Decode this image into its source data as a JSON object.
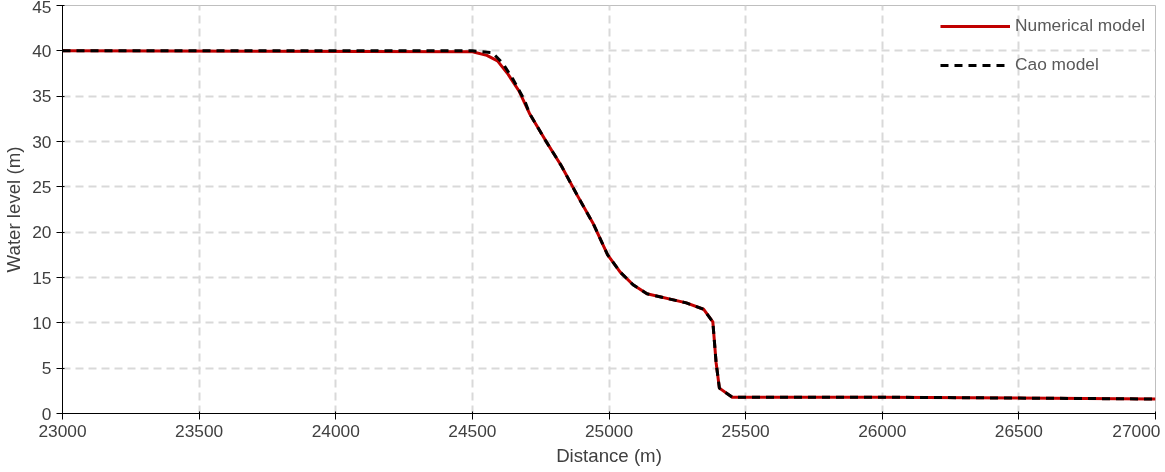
{
  "chart_data": {
    "type": "line",
    "xlabel": "Distance (m)",
    "ylabel": "Water level (m)",
    "xlim": [
      23000,
      27000
    ],
    "xticks": [
      23000,
      23500,
      24000,
      24500,
      25000,
      25500,
      26000,
      26500,
      27000
    ],
    "ylim": [
      0,
      45
    ],
    "yticks": [
      0,
      5,
      10,
      15,
      20,
      25,
      30,
      35,
      40,
      45
    ],
    "grid": true,
    "legend": "top right",
    "series": [
      {
        "name": "Numerical model",
        "color": "#c00000",
        "line_style": "solid",
        "x": [
          23000,
          24500,
          24553,
          24592,
          24631,
          24670,
          24709,
          24768,
          24826,
          24885,
          24943,
          24995,
          25041,
          25088,
          25139,
          25283,
          25346,
          25380,
          25392,
          25404,
          25451,
          26000,
          27000
        ],
        "values": [
          40,
          39.9,
          39.5,
          38.9,
          37.4,
          35.6,
          33.1,
          30.1,
          27.3,
          24,
          20.9,
          17.5,
          15.6,
          14.2,
          13.2,
          12.2,
          11.5,
          10.1,
          5.6,
          2.8,
          1.8,
          1.8,
          1.6
        ]
      },
      {
        "name": "Cao model",
        "color": "#000000",
        "line_style": "dashed",
        "x": [
          23000,
          24500,
          24573,
          24612,
          24650,
          24690,
          24709,
          24768,
          24826,
          24885,
          24943,
          24995,
          25041,
          25088,
          25139,
          25283,
          25346,
          25380,
          25392,
          25404,
          25451,
          26000,
          27000
        ],
        "values": [
          40,
          40,
          39.8,
          38.6,
          36.8,
          34.6,
          33.1,
          30.1,
          27.3,
          24,
          20.9,
          17.5,
          15.6,
          14.2,
          13.2,
          12.2,
          11.5,
          10.1,
          5.6,
          2.8,
          1.8,
          1.8,
          1.6
        ]
      }
    ]
  }
}
